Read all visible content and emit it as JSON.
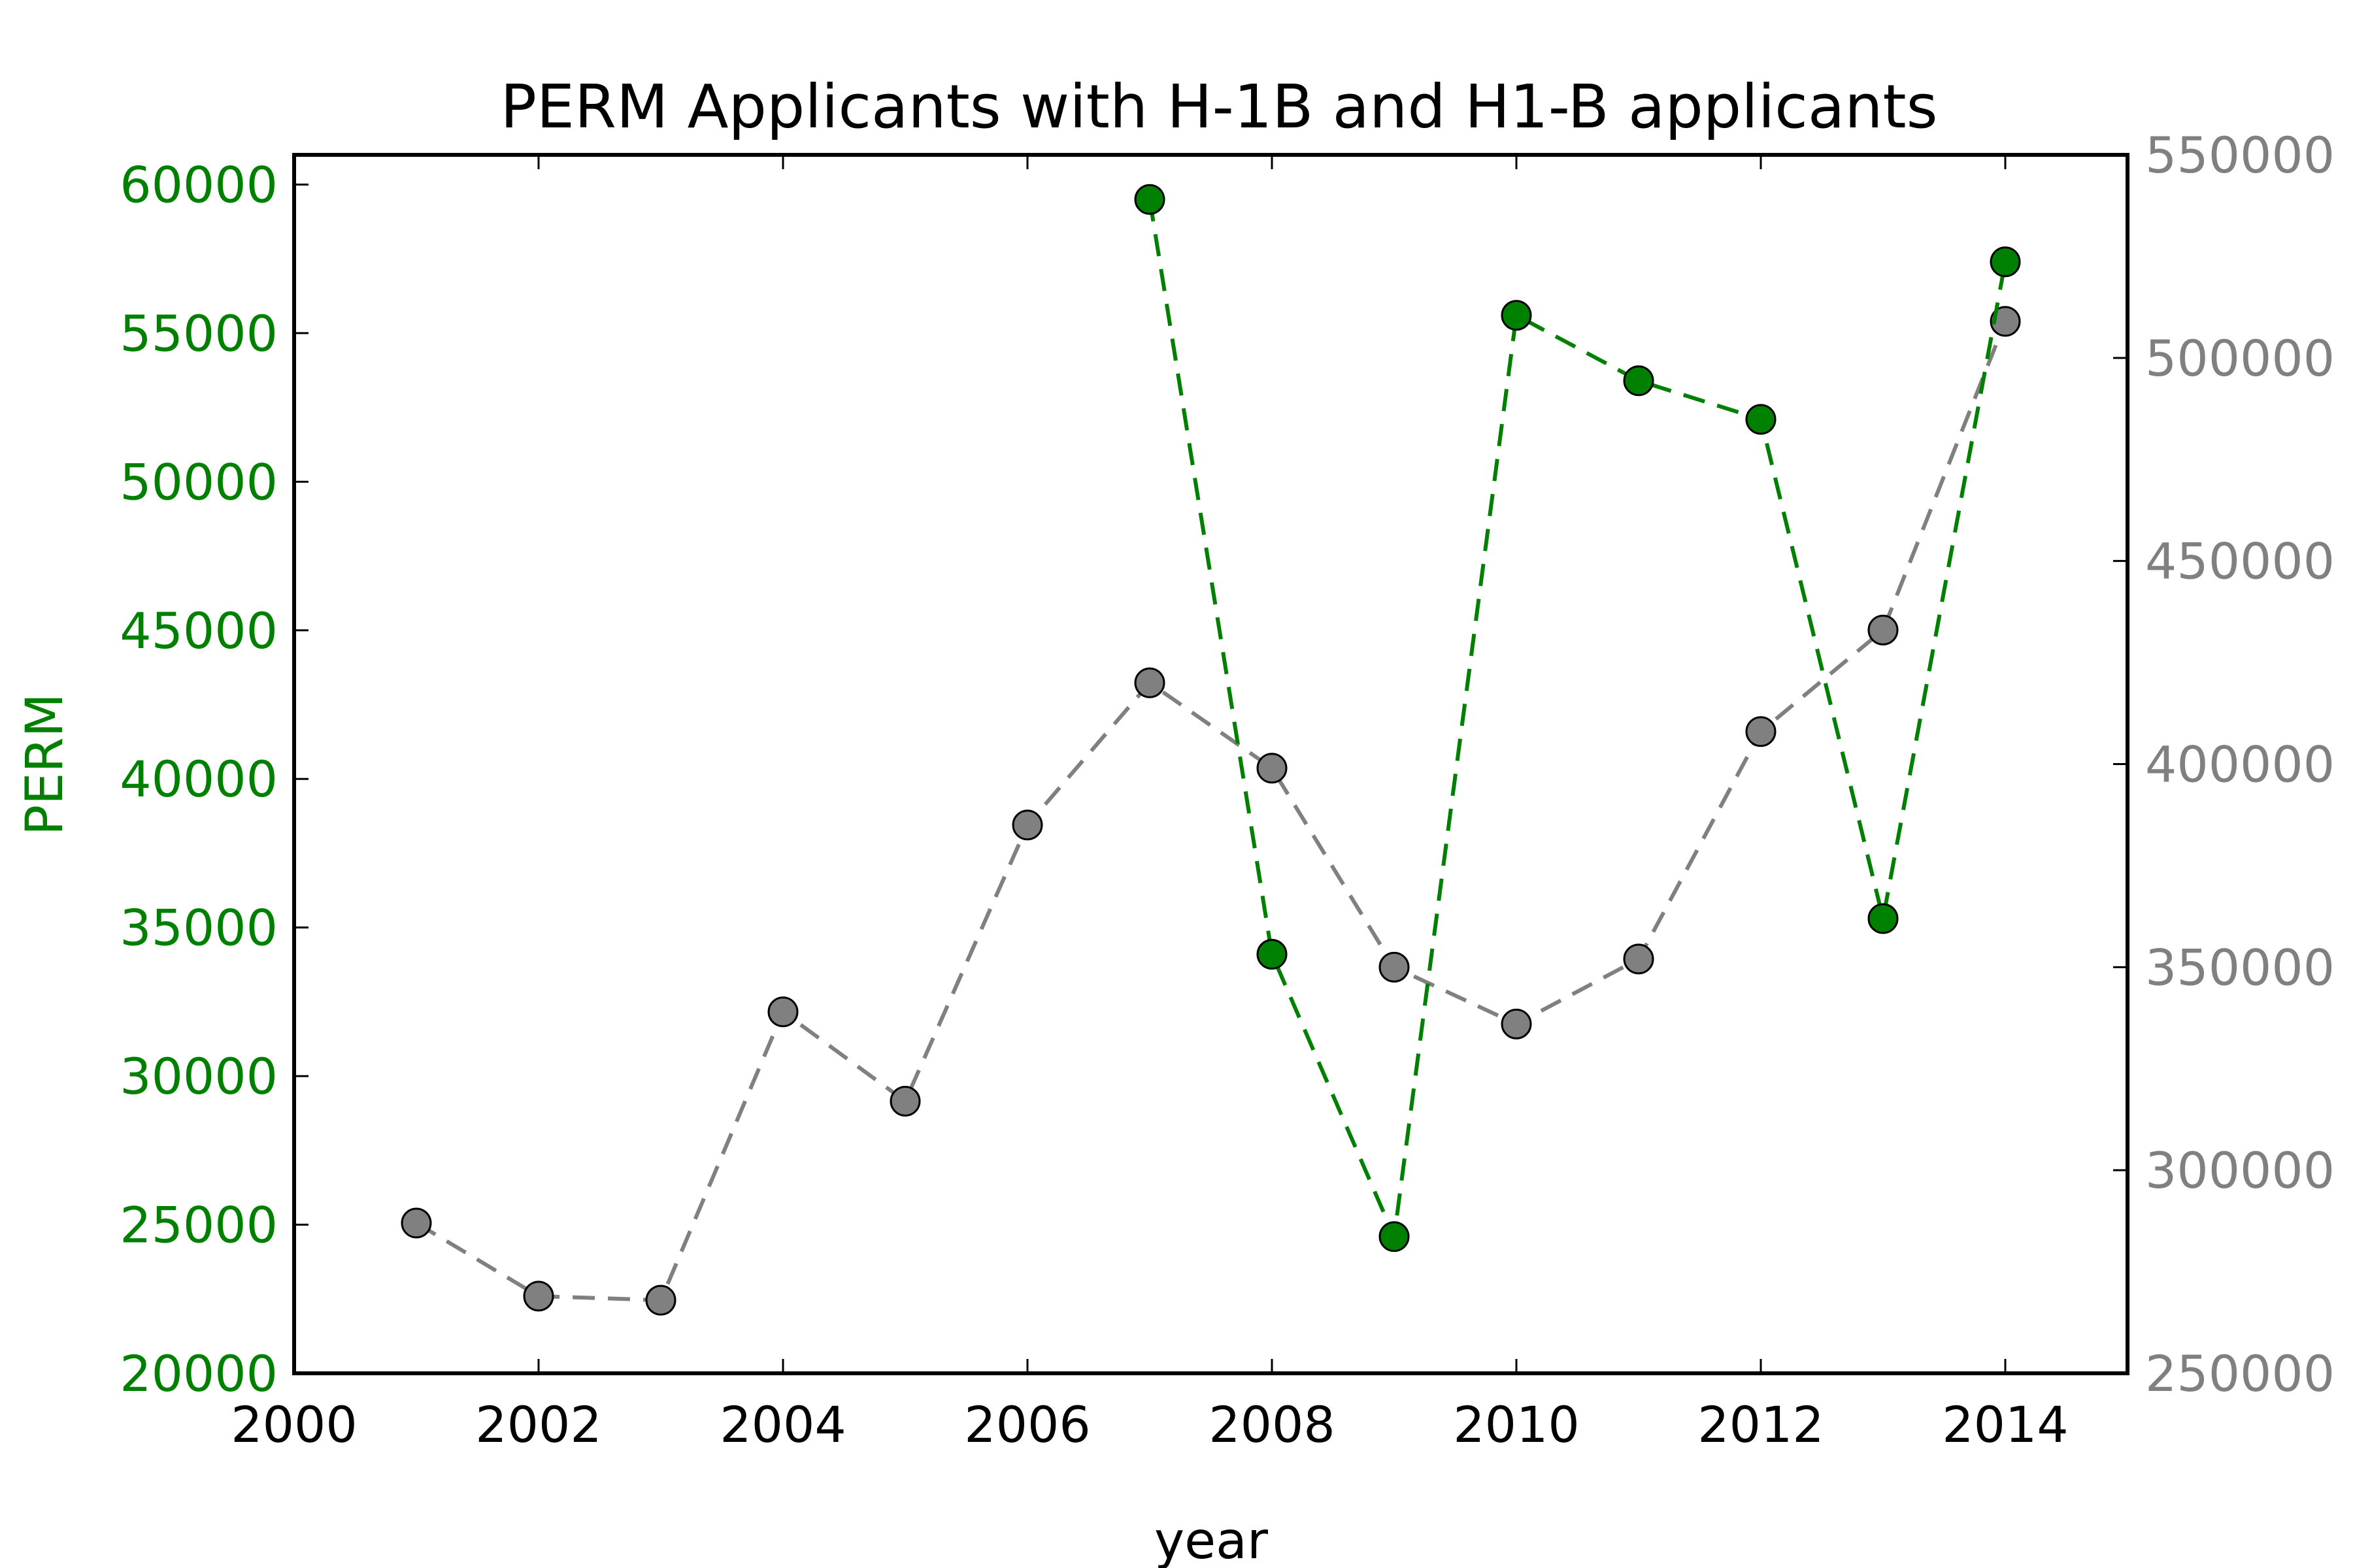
{
  "chart_data": {
    "type": "line",
    "title": "PERM Applicants with H-1B and H1-B applicants",
    "xlabel": "year",
    "ylabel": "PERM",
    "y2label": "",
    "xlim": [
      2000,
      2015
    ],
    "ylim": [
      20000,
      61000
    ],
    "y2lim": [
      250000,
      550000
    ],
    "xticks": [
      2000,
      2002,
      2004,
      2006,
      2008,
      2010,
      2012,
      2014
    ],
    "xtick_labels": [
      "2000",
      "2002",
      "2004",
      "2006",
      "2008",
      "2010",
      "2012",
      "2014"
    ],
    "yticks": [
      20000,
      25000,
      30000,
      35000,
      40000,
      45000,
      50000,
      55000,
      60000
    ],
    "ytick_labels": [
      "20000",
      "25000",
      "30000",
      "35000",
      "40000",
      "45000",
      "50000",
      "55000",
      "60000"
    ],
    "y2ticks": [
      250000,
      300000,
      350000,
      400000,
      450000,
      500000,
      550000
    ],
    "y2tick_labels": [
      "250000",
      "300000",
      "350000",
      "400000",
      "450000",
      "500000",
      "550000"
    ],
    "grid": false,
    "series": [
      {
        "axis": "right",
        "color": "#808080",
        "line_style": "dashed",
        "marker": "circle",
        "x": [
          2001,
          2002,
          2003,
          2004,
          2005,
          2006,
          2007,
          2008,
          2009,
          2010,
          2011,
          2012,
          2013,
          2014
        ],
        "values": [
          287000,
          269000,
          268000,
          339000,
          317000,
          385000,
          420000,
          399000,
          350000,
          336000,
          352000,
          408000,
          433000,
          509000
        ]
      },
      {
        "axis": "left",
        "color": "#008000",
        "line_style": "dashed",
        "marker": "circle",
        "x": [
          2007,
          2008,
          2009,
          2010,
          2011,
          2012,
          2013,
          2014
        ],
        "values": [
          59500,
          34100,
          24600,
          55600,
          53400,
          52100,
          35300,
          57400
        ]
      }
    ],
    "colors": {
      "left_axis": "#008000",
      "right_axis": "#808080",
      "text": "#000000"
    }
  }
}
